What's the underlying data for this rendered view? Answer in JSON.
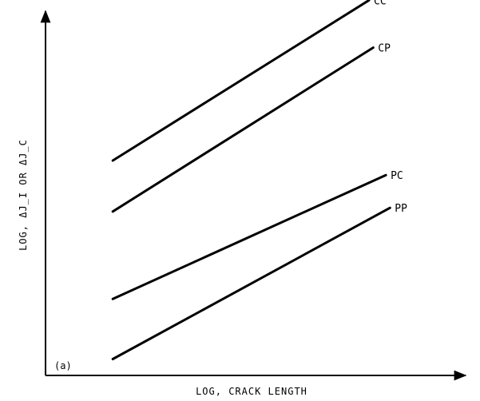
{
  "chart_data": {
    "type": "line",
    "xlabel": "LOG, CRACK LENGTH",
    "ylabel": "LOG, ΔJ_I OR ΔJ_C",
    "panel_label": "(a)",
    "grid": false,
    "legend": "inline labels at line ends",
    "xlim": [
      0,
      10
    ],
    "ylim": [
      0,
      10
    ],
    "series": [
      {
        "name": "CC",
        "color": "#000000",
        "points": [
          [
            1.6,
            5.9
          ],
          [
            7.7,
            10.3
          ]
        ]
      },
      {
        "name": "CP",
        "color": "#000000",
        "points": [
          [
            1.6,
            4.5
          ],
          [
            7.8,
            9.0
          ]
        ]
      },
      {
        "name": "PC",
        "color": "#000000",
        "points": [
          [
            1.6,
            2.1
          ],
          [
            8.1,
            5.5
          ]
        ]
      },
      {
        "name": "PP",
        "color": "#000000",
        "points": [
          [
            1.6,
            0.45
          ],
          [
            8.2,
            4.6
          ]
        ]
      }
    ]
  }
}
